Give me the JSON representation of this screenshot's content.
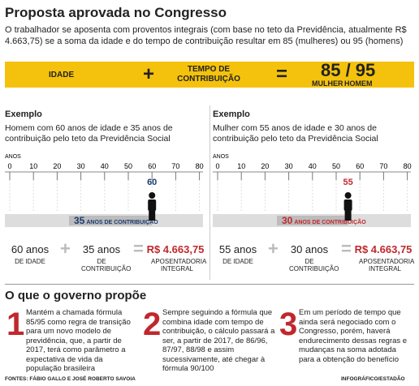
{
  "header": {
    "title": "Proposta aprovada no Congresso",
    "intro": "O trabalhador se aposenta com proventos integrais (com base no teto da Previdência, atualmente R$ 4.663,75) se a soma da idade e do tempo de contribuição resultar em 85 (mulheres) ou 95 (homens)"
  },
  "formula": {
    "left": "IDADE",
    "plus": "+",
    "middle": "TEMPO DE CONTRIBUIÇÃO",
    "equals": "=",
    "result": "85 / 95",
    "women": "MULHER",
    "men": "HOMEM"
  },
  "examples": [
    {
      "heading": "Exemplo",
      "text": "Homem com 60 anos de idade e 35 anos de contribuição pelo teto da Previdência Social",
      "axis_label": "ANOS",
      "ticks": [
        0,
        10,
        20,
        30,
        40,
        50,
        60,
        70,
        80
      ],
      "age": 60,
      "contribution": 35,
      "contribution_label": "ANOS DE CONTRIBUIÇÃO",
      "age_text": "60 anos",
      "age_caption": "DE IDADE",
      "plus": "+",
      "years_text": "35 anos",
      "years_caption": "DE CONTRIBUIÇÃO",
      "equals": "=",
      "amount": "R$ 4.663,75",
      "amount_caption": "APOSENTADORIA INTEGRAL"
    },
    {
      "heading": "Exemplo",
      "text": "Mulher com 55 anos de idade e 30 anos de contribuição pelo teto da Previdência Social",
      "axis_label": "ANOS",
      "ticks": [
        0,
        10,
        20,
        30,
        40,
        50,
        60,
        70,
        80
      ],
      "age": 55,
      "contribution": 30,
      "contribution_label": "ANOS DE CONTRIBUIÇÃO",
      "age_text": "55 anos",
      "age_caption": "DE IDADE",
      "plus": "+",
      "years_text": "30 anos",
      "years_caption": "DE CONTRIBUIÇÃO",
      "equals": "=",
      "amount": "R$ 4.663,75",
      "amount_caption": "APOSENTADORIA INTEGRAL"
    }
  ],
  "proposal": {
    "title": "O que o governo propõe",
    "items": [
      {
        "number": "1",
        "text": "Mantém a chamada fórmula 85/95 como regra de transição para um novo modelo de previdência, que, a partir de 2017, terá como parâmetro a expectativa de vida da população brasileira"
      },
      {
        "number": "2",
        "text": "Sempre seguindo a fórmula que combina idade com tempo de contribuição, o cálculo passará a ser, a partir de 2017, de 86/96, 87/97, 88/98 e assim sucessivamente, até chegar à fórmula 90/100"
      },
      {
        "number": "3",
        "text": "Em um período de tempo que ainda será negociado com o Congresso, porém, haverá endurecimento dessas regras e mudanças na soma adotada para a obtenção do benefício"
      }
    ]
  },
  "footer": {
    "sources": "FONTES: FÁBIO GALLO E JOSÉ ROBERTO SAVOIA",
    "credit": "INFOGRÁFICO/ESTADÃO"
  }
}
